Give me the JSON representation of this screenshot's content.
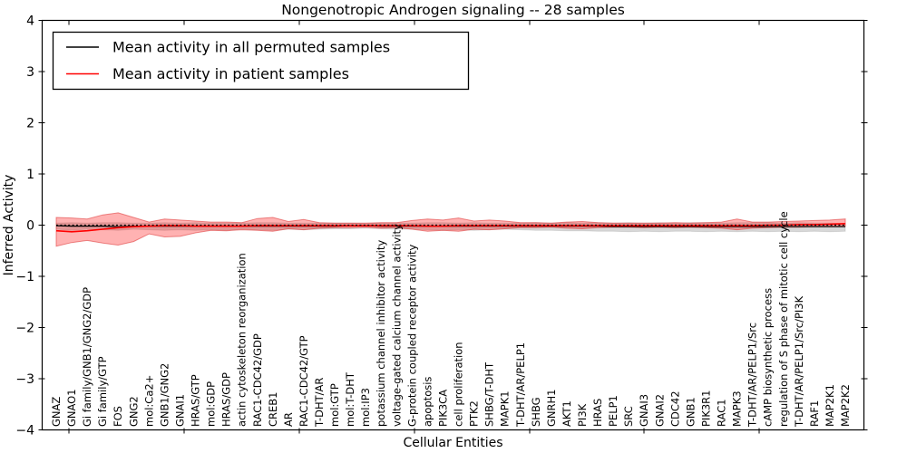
{
  "chart_data": {
    "type": "line",
    "title": "Nongenotropic Androgen signaling -- 28 samples",
    "xlabel": "Cellular Entities",
    "ylabel": "Inferred Activity",
    "ylim": [
      -4,
      4
    ],
    "yticks": [
      -4,
      -3,
      -2,
      -1,
      0,
      1,
      2,
      3,
      4
    ],
    "grid": false,
    "legend_position": "upper left",
    "zero_line": 0,
    "categories": [
      "GNAZ",
      "GNAO1",
      "Gi family/GNB1/GNG2/GDP",
      "Gi family/GTP",
      "FOS",
      "GNG2",
      "mol:Ca2+",
      "GNB1/GNG2",
      "GNAI1",
      "HRAS/GTP",
      "mol:GDP",
      "HRAS/GDP",
      "actin cytoskeleton reorganization",
      "RAC1-CDC42/GDP",
      "CREB1",
      "AR",
      "RAC1-CDC42/GTP",
      "T-DHT/AR",
      "mol:GTP",
      "mol:T-DHT",
      "mol:IP3",
      "potassium channel inhibitor activity",
      "voltage-gated calcium channel activity",
      "G-protein coupled receptor activity",
      "apoptosis",
      "PIK3CA",
      "cell proliferation",
      "PTK2",
      "SHBG/T-DHT",
      "MAPK1",
      "T-DHT/AR/PELP1",
      "SHBG",
      "GNRH1",
      "AKT1",
      "PI3K",
      "HRAS",
      "PELP1",
      "SRC",
      "GNAI3",
      "GNAI2",
      "CDC42",
      "GNB1",
      "PIK3R1",
      "RAC1",
      "MAPK3",
      "T-DHT/AR/PELP1/Src",
      "cAMP biosynthetic process",
      "regulation of S phase of mitotic cell cycle",
      "T-DHT/AR/PELP1/Src/PI3K",
      "RAF1",
      "MAP2K1",
      "MAP2K2"
    ],
    "series": [
      {
        "name": "Mean activity in all permuted samples",
        "color": "#000000",
        "values": [
          -0.01,
          -0.02,
          -0.02,
          -0.02,
          -0.03,
          -0.02,
          -0.02,
          -0.02,
          -0.02,
          -0.02,
          -0.02,
          -0.02,
          -0.02,
          -0.02,
          -0.02,
          -0.02,
          -0.02,
          -0.02,
          -0.02,
          -0.01,
          -0.01,
          -0.02,
          -0.02,
          -0.02,
          -0.02,
          -0.02,
          -0.02,
          -0.02,
          -0.02,
          -0.02,
          -0.02,
          -0.02,
          -0.02,
          -0.02,
          -0.02,
          -0.02,
          -0.03,
          -0.03,
          -0.03,
          -0.03,
          -0.03,
          -0.03,
          -0.03,
          -0.03,
          -0.03,
          -0.03,
          -0.03,
          -0.03,
          -0.03,
          -0.03,
          -0.03,
          -0.03
        ]
      },
      {
        "name": "Mean activity in patient samples",
        "color": "#ff0000",
        "values": [
          -0.11,
          -0.13,
          -0.11,
          -0.08,
          -0.05,
          -0.03,
          -0.02,
          -0.01,
          -0.01,
          -0.02,
          -0.02,
          -0.02,
          -0.02,
          -0.01,
          -0.01,
          -0.01,
          -0.01,
          -0.01,
          -0.01,
          -0.01,
          -0.01,
          -0.01,
          -0.01,
          -0.01,
          -0.02,
          -0.02,
          -0.01,
          -0.01,
          -0.01,
          -0.01,
          -0.01,
          -0.01,
          -0.01,
          -0.01,
          -0.01,
          -0.01,
          -0.01,
          -0.01,
          -0.01,
          -0.01,
          -0.01,
          -0.01,
          -0.01,
          -0.01,
          -0.01,
          -0.01,
          0.0,
          0.0,
          0.01,
          0.01,
          0.02,
          0.03
        ]
      }
    ],
    "bands": [
      {
        "name": "permuted samples range",
        "fill": "rgba(60,60,60,0.20)",
        "edge": "rgba(0,0,0,0.10)",
        "upper": [
          0.04,
          0.05,
          0.04,
          0.05,
          0.05,
          0.04,
          0.04,
          0.05,
          0.04,
          0.05,
          0.04,
          0.04,
          0.04,
          0.05,
          0.05,
          0.04,
          0.04,
          0.04,
          0.04,
          0.04,
          0.03,
          0.04,
          0.04,
          0.04,
          0.05,
          0.05,
          0.04,
          0.05,
          0.04,
          0.04,
          0.04,
          0.05,
          0.04,
          0.05,
          0.04,
          0.05,
          0.04,
          0.05,
          0.04,
          0.05,
          0.04,
          0.05,
          0.05,
          0.04,
          0.05,
          0.05,
          0.05,
          0.04,
          0.05,
          0.04,
          0.04,
          0.03
        ],
        "lower": [
          -0.08,
          -0.1,
          -0.08,
          -0.09,
          -0.1,
          -0.08,
          -0.09,
          -0.1,
          -0.09,
          -0.1,
          -0.09,
          -0.1,
          -0.08,
          -0.09,
          -0.1,
          -0.08,
          -0.09,
          -0.08,
          -0.07,
          -0.07,
          -0.06,
          -0.07,
          -0.08,
          -0.08,
          -0.09,
          -0.1,
          -0.09,
          -0.1,
          -0.09,
          -0.08,
          -0.09,
          -0.1,
          -0.1,
          -0.11,
          -0.11,
          -0.12,
          -0.12,
          -0.13,
          -0.12,
          -0.13,
          -0.12,
          -0.12,
          -0.13,
          -0.12,
          -0.13,
          -0.12,
          -0.13,
          -0.12,
          -0.13,
          -0.12,
          -0.13,
          -0.12
        ]
      },
      {
        "name": "patient samples range",
        "fill": "rgba(255,0,0,0.30)",
        "edge": "rgba(220,50,50,0.55)",
        "upper": [
          0.15,
          0.14,
          0.12,
          0.2,
          0.24,
          0.15,
          0.06,
          0.12,
          0.1,
          0.08,
          0.06,
          0.06,
          0.05,
          0.13,
          0.15,
          0.07,
          0.11,
          0.05,
          0.04,
          0.04,
          0.04,
          0.05,
          0.05,
          0.09,
          0.12,
          0.1,
          0.14,
          0.08,
          0.1,
          0.08,
          0.05,
          0.05,
          0.04,
          0.06,
          0.07,
          0.05,
          0.04,
          0.04,
          0.04,
          0.04,
          0.05,
          0.04,
          0.05,
          0.06,
          0.12,
          0.06,
          0.06,
          0.07,
          0.08,
          0.09,
          0.1,
          0.12
        ],
        "lower": [
          -0.41,
          -0.34,
          -0.3,
          -0.35,
          -0.39,
          -0.32,
          -0.17,
          -0.23,
          -0.22,
          -0.15,
          -0.1,
          -0.11,
          -0.09,
          -0.1,
          -0.12,
          -0.07,
          -0.09,
          -0.06,
          -0.05,
          -0.05,
          -0.04,
          -0.06,
          -0.05,
          -0.08,
          -0.12,
          -0.1,
          -0.12,
          -0.08,
          -0.09,
          -0.07,
          -0.05,
          -0.05,
          -0.04,
          -0.06,
          -0.07,
          -0.05,
          -0.04,
          -0.04,
          -0.05,
          -0.04,
          -0.05,
          -0.04,
          -0.05,
          -0.06,
          -0.09,
          -0.06,
          -0.05,
          -0.04,
          -0.04,
          -0.03,
          -0.03,
          -0.02
        ]
      }
    ]
  }
}
